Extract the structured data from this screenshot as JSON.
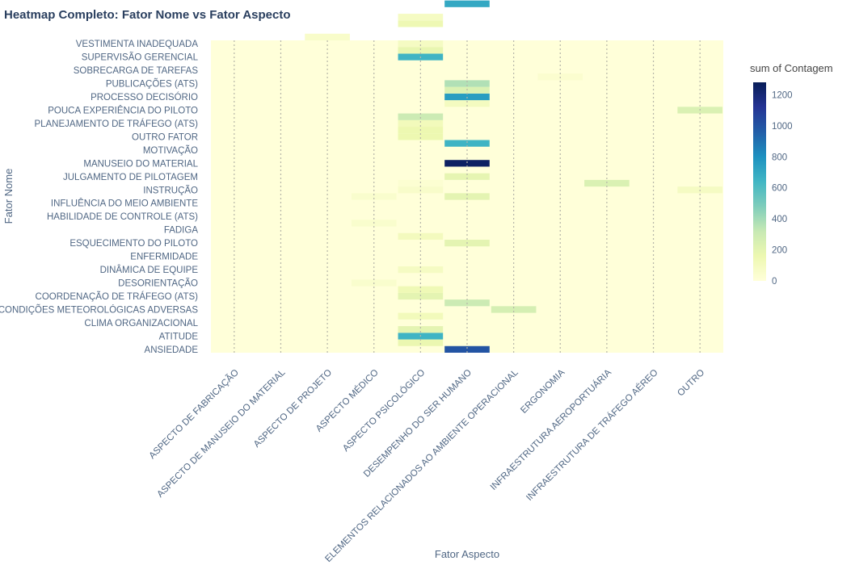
{
  "chart_data": {
    "type": "heatmap",
    "title": "Heatmap Completo: Fator Nome vs Fator Aspecto",
    "xlabel": "Fator Aspecto",
    "ylabel": "Fator Nome",
    "colorbar": {
      "title": "sum of Contagem",
      "ticks": [
        0,
        200,
        400,
        600,
        800,
        1000,
        1200
      ],
      "range": [
        0,
        1280
      ]
    },
    "colorscale": "YlGnBu",
    "x": [
      "ASPECTO DE FABRICAÇÃO",
      "ASPECTO DE MANUSEIO DO MATERIAL",
      "ASPECTO DE PROJETO",
      "ASPECTO MÉDICO",
      "ASPECTO PSICOLÓGICO",
      "DESEMPENHO DO SER HUMANO",
      "ELEMENTOS RELACIONADOS AO AMBIENTE OPERACIONAL",
      "ERGONOMIA",
      "INFRAESTRUTURA AEROPORTUÁRIA",
      "INFRAESTRUTURA DE TRÁFEGO AÉREO",
      "OUTRO"
    ],
    "y": [
      "ANSIEDADE",
      "",
      "ATITUDE",
      "",
      "CLIMA ORGANIZACIONAL",
      "",
      "CONDIÇÕES METEOROLÓGICAS ADVERSAS",
      "",
      "COORDENAÇÃO DE TRÁFEGO (ATS)",
      "",
      "DESORIENTAÇÃO",
      "",
      "DINÂMICA DE EQUIPE",
      "",
      "ENFERMIDADE",
      "",
      "ESQUECIMENTO DO PILOTO",
      "",
      "FADIGA",
      "",
      "HABILIDADE DE CONTROLE (ATS)",
      "",
      "INFLUÊNCIA DO MEIO AMBIENTE",
      "",
      "INSTRUÇÃO",
      "",
      "JULGAMENTO DE PILOTAGEM",
      "",
      "MANUSEIO DO MATERIAL",
      "",
      "MOTIVAÇÃO",
      "",
      "OUTRO FATOR",
      "",
      "PLANEJAMENTO DE TRÁFEGO (ATS)",
      "",
      "POUCA EXPERIÊNCIA DO PILOTO",
      "",
      "PROCESSO DECISÓRIO",
      "",
      "PUBLICAÇÕES (ATS)",
      "",
      "SOBRECARGA DE TAREFAS",
      "",
      "SUPERVISÃO GERENCIAL",
      "",
      "VESTIMENTA INADEQUADA"
    ],
    "cells": [
      {
        "row": 0,
        "col": 5,
        "value": 1000
      },
      {
        "row": 1,
        "col": 4,
        "value": 170
      },
      {
        "row": 2,
        "col": 4,
        "value": 650
      },
      {
        "row": 3,
        "col": 4,
        "value": 200
      },
      {
        "row": 5,
        "col": 4,
        "value": 120
      },
      {
        "row": 6,
        "col": 6,
        "value": 260
      },
      {
        "row": 7,
        "col": 5,
        "value": 300
      },
      {
        "row": 8,
        "col": 4,
        "value": 200
      },
      {
        "row": 9,
        "col": 4,
        "value": 140
      },
      {
        "row": 10,
        "col": 3,
        "value": 50
      },
      {
        "row": 12,
        "col": 4,
        "value": 90
      },
      {
        "row": 16,
        "col": 5,
        "value": 200
      },
      {
        "row": 17,
        "col": 4,
        "value": 110
      },
      {
        "row": 19,
        "col": 3,
        "value": 50
      },
      {
        "row": 23,
        "col": 3,
        "value": 50
      },
      {
        "row": 23,
        "col": 5,
        "value": 200
      },
      {
        "row": 24,
        "col": 4,
        "value": 60
      },
      {
        "row": 25,
        "col": 4,
        "value": 30
      },
      {
        "row": 24,
        "col": 10,
        "value": 90
      },
      {
        "row": 26,
        "col": 5,
        "value": 190
      },
      {
        "row": 25,
        "col": 8,
        "value": 240
      },
      {
        "row": 28,
        "col": 5,
        "value": 1250
      },
      {
        "row": 31,
        "col": 5,
        "value": 650
      },
      {
        "row": 32,
        "col": 4,
        "value": 160
      },
      {
        "row": 33,
        "col": 4,
        "value": 160
      },
      {
        "row": 34,
        "col": 4,
        "value": 120
      },
      {
        "row": 35,
        "col": 4,
        "value": 300
      },
      {
        "row": 36,
        "col": 10,
        "value": 240
      },
      {
        "row": 37,
        "col": 5,
        "value": 100
      },
      {
        "row": 38,
        "col": 5,
        "value": 750
      },
      {
        "row": 39,
        "col": 5,
        "value": 240
      },
      {
        "row": 40,
        "col": 5,
        "value": 370
      },
      {
        "row": 41,
        "col": 7,
        "value": 40
      },
      {
        "row": 44,
        "col": 4,
        "value": 650
      },
      {
        "row": 45,
        "col": 4,
        "value": 180
      },
      {
        "row": 46,
        "col": 4,
        "value": 90
      },
      {
        "row": 47,
        "col": 2,
        "value": 60
      },
      {
        "row": 49,
        "col": 4,
        "value": 150
      },
      {
        "row": 50,
        "col": 4,
        "value": 90
      },
      {
        "row": 52,
        "col": 5,
        "value": 700
      },
      {
        "row": 54,
        "col": 3,
        "value": 40
      }
    ]
  }
}
